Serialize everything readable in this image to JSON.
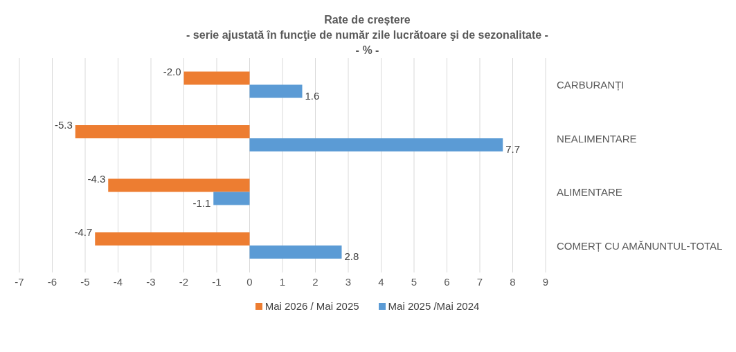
{
  "chart_data": {
    "type": "bar",
    "orientation": "horizontal",
    "title": "Rate de creștere",
    "subtitle": "- serie ajustată în funcţie de număr zile lucrătoare şi de sezonalitate -",
    "annotations": [
      "- % -"
    ],
    "categories": [
      "CARBURANȚI",
      "NEALIMENTARE",
      "ALIMENTARE",
      "COMERȚ CU AMĂNUNTUL-TOTAL"
    ],
    "series": [
      {
        "name": "Mai 2026 / Mai 2025",
        "color": "#ed7d31",
        "values": [
          -2.0,
          -5.3,
          -4.3,
          -4.7
        ],
        "value_labels": [
          "-2.0",
          "-5.3",
          "-4.3",
          "-4.7"
        ]
      },
      {
        "name": "Mai 2025 /Mai 2024",
        "color": "#5b9bd5",
        "values": [
          1.6,
          7.7,
          -1.1,
          2.8
        ],
        "value_labels": [
          "1.6",
          "7.7",
          "-1.1",
          "2.8"
        ]
      }
    ],
    "xlim": [
      -7,
      9
    ],
    "xticks": [
      -7,
      -6,
      -5,
      -4,
      -3,
      -2,
      -1,
      0,
      1,
      2,
      3,
      4,
      5,
      6,
      7,
      8,
      9
    ],
    "grid": "x",
    "legend": "bottom"
  }
}
